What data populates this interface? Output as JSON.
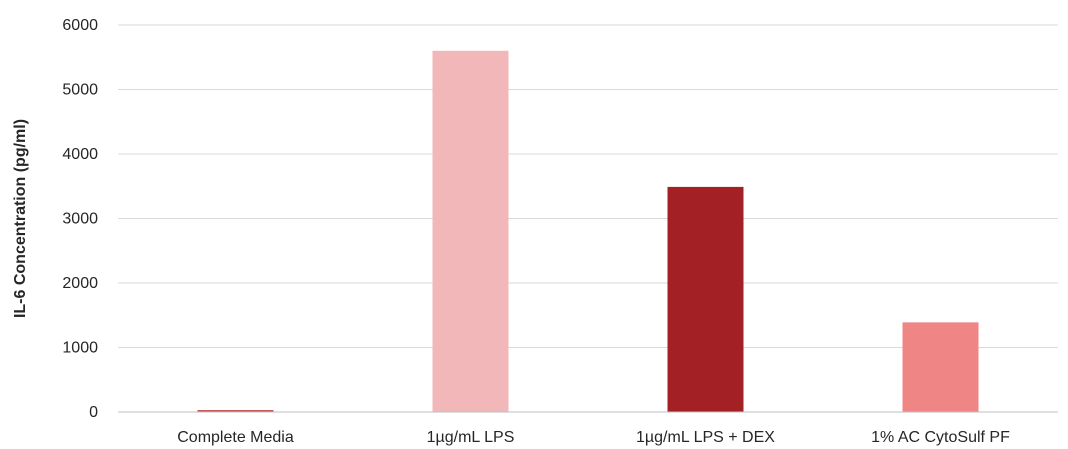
{
  "chart_data": {
    "type": "bar",
    "title": "",
    "xlabel": "",
    "ylabel": "IL-6 Concentration  (pg/ml)",
    "ylim": [
      0,
      6000
    ],
    "ytick_step": 1000,
    "yticks": [
      "0",
      "1000",
      "2000",
      "3000",
      "4000",
      "5000",
      "6000"
    ],
    "grid": true,
    "legend": "none",
    "categories": [
      "Complete Media",
      "1µg/mL LPS",
      "1µg/mL LPS + DEX",
      "1% AC CytoSulf PF"
    ],
    "values": [
      30,
      5600,
      3490,
      1390
    ],
    "colors": [
      "#c0504d",
      "#f2b8b9",
      "#a32024",
      "#f08586"
    ],
    "gridline_color": "#d9d9d9",
    "axis_color": "#bfbfbf"
  }
}
